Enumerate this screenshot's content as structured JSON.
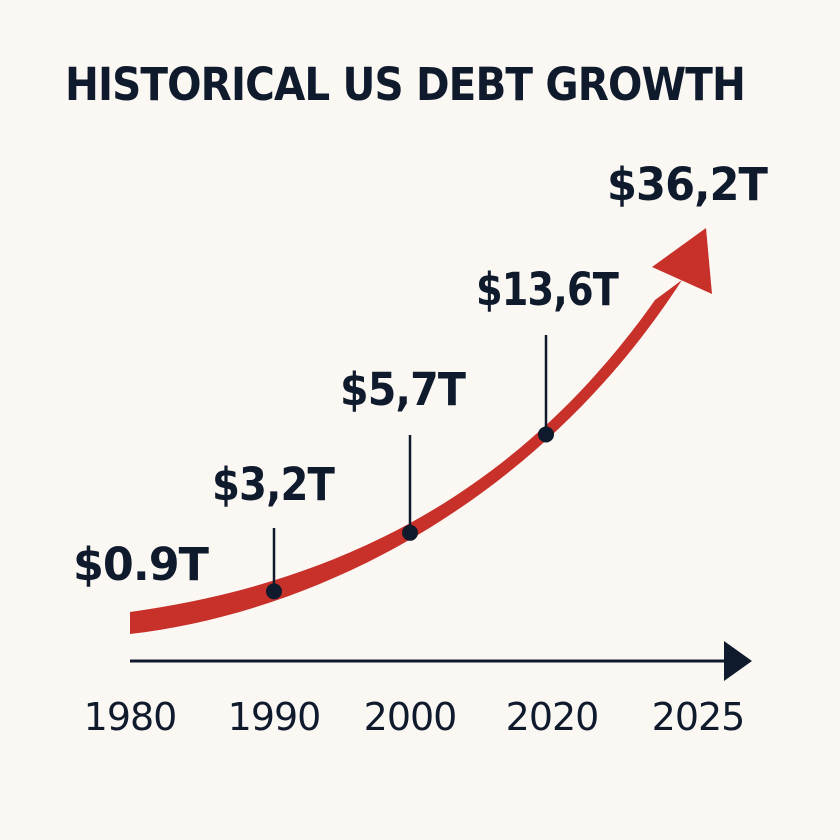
{
  "chart_data": {
    "type": "line",
    "title": "HISTORICAL US DEBT GROWTH",
    "xlabel": "",
    "ylabel": "",
    "x": [
      "1980",
      "1990",
      "2000",
      "2020",
      "2025"
    ],
    "values": [
      0.9,
      3.2,
      5.7,
      13.6,
      36.2
    ],
    "value_labels": [
      "$0.9T",
      "$3,2T",
      "$5,7T",
      "$13,6T",
      "$36,2T"
    ],
    "unit": "trillion USD",
    "grid": false,
    "legend": "none",
    "colors": {
      "trend_arrow": "#c8302a",
      "ink": "#0f1a2c",
      "background": "#fbf8f4"
    }
  }
}
